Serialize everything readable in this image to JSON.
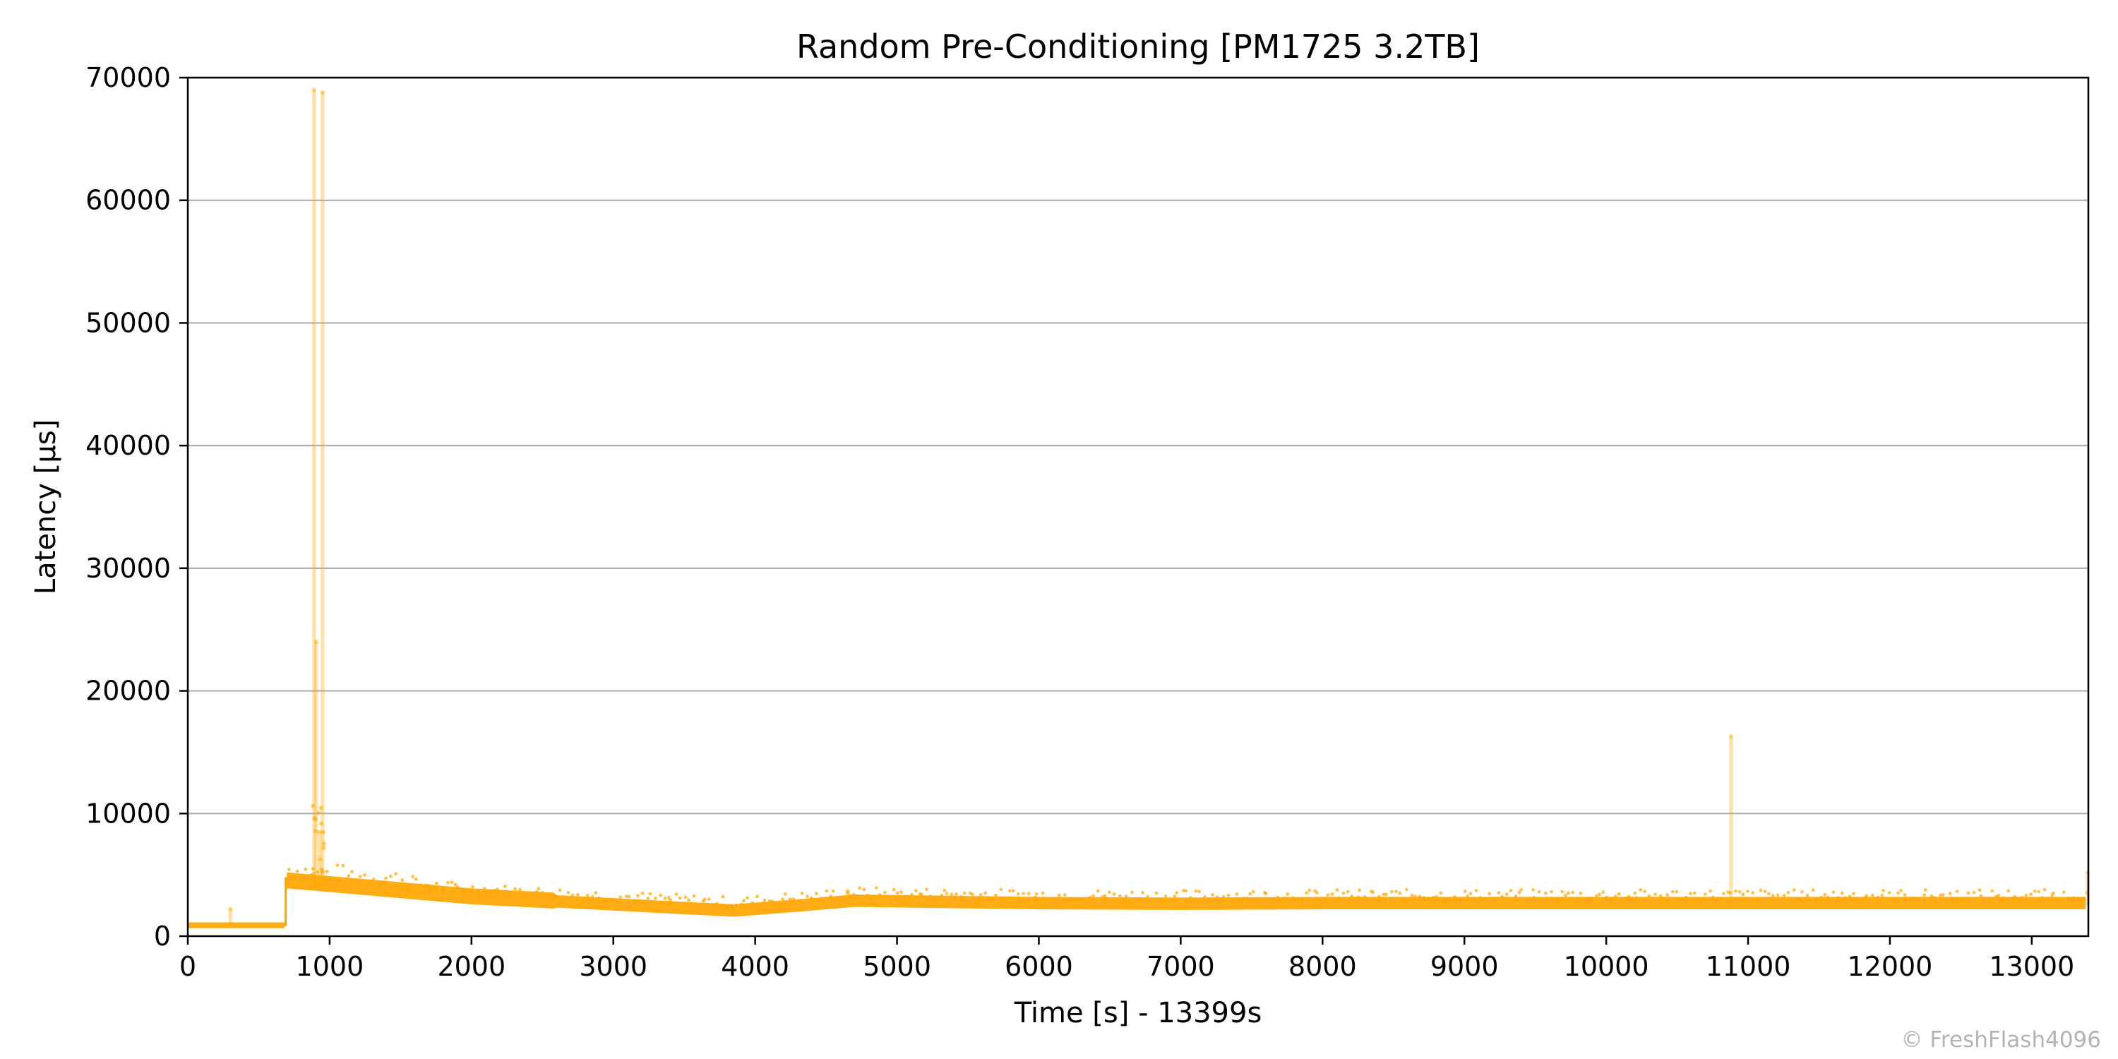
{
  "chart_data": {
    "type": "scatter",
    "title": "Random Pre-Conditioning [PM1725 3.2TB]",
    "xlabel": "Time [s] - 13399s",
    "ylabel": "Latency [µs]",
    "xlim": [
      0,
      13399
    ],
    "ylim": [
      0,
      70000
    ],
    "xticks": [
      "0",
      "1000",
      "2000",
      "3000",
      "4000",
      "5000",
      "6000",
      "7000",
      "8000",
      "9000",
      "10000",
      "11000",
      "12000",
      "13000"
    ],
    "yticks": [
      "0",
      "10000",
      "20000",
      "30000",
      "40000",
      "50000",
      "60000",
      "70000"
    ],
    "grid": "horizontal",
    "legend": "none",
    "series_color": "#ffa500",
    "baseline": [
      {
        "x": 0,
        "y": 800
      },
      {
        "x": 680,
        "y": 800
      },
      {
        "x": 700,
        "y": 4300
      },
      {
        "x": 1000,
        "y": 4000
      },
      {
        "x": 1500,
        "y": 3500
      },
      {
        "x": 2000,
        "y": 3000
      },
      {
        "x": 2500,
        "y": 2700
      },
      {
        "x": 3000,
        "y": 2400
      },
      {
        "x": 3500,
        "y": 2100
      },
      {
        "x": 3850,
        "y": 1900
      },
      {
        "x": 4300,
        "y": 2300
      },
      {
        "x": 4700,
        "y": 2700
      },
      {
        "x": 5000,
        "y": 2650
      },
      {
        "x": 6000,
        "y": 2500
      },
      {
        "x": 7000,
        "y": 2450
      },
      {
        "x": 8000,
        "y": 2500
      },
      {
        "x": 9000,
        "y": 2500
      },
      {
        "x": 10000,
        "y": 2500
      },
      {
        "x": 11000,
        "y": 2500
      },
      {
        "x": 12000,
        "y": 2500
      },
      {
        "x": 13399,
        "y": 2500
      }
    ],
    "spikes": [
      {
        "x": 890,
        "y": 69000
      },
      {
        "x": 905,
        "y": 24000
      },
      {
        "x": 950,
        "y": 68800
      },
      {
        "x": 930,
        "y": 8500
      },
      {
        "x": 10880,
        "y": 16300
      },
      {
        "x": 300,
        "y": 2200
      },
      {
        "x": 4650,
        "y": 3700
      },
      {
        "x": 13395,
        "y": 5200
      }
    ]
  },
  "watermark": "© FreshFlash4096"
}
